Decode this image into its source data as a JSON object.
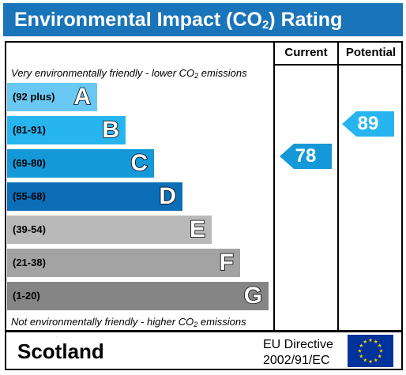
{
  "title": {
    "prefix": "Environmental Impact (CO",
    "sub": "2",
    "suffix": ") Rating"
  },
  "columns": {
    "current": "Current",
    "potential": "Potential"
  },
  "top_note": {
    "prefix": "Very environmentally friendly - lower CO",
    "sub": "2",
    "suffix": " emissions"
  },
  "bottom_note": {
    "prefix": "Not environmentally friendly - higher CO",
    "sub": "2",
    "suffix": " emissions"
  },
  "bands": [
    {
      "range": "(92 plus)",
      "letter": "A",
      "color": "#69c8f2"
    },
    {
      "range": "(81-91)",
      "letter": "B",
      "color": "#27b5f0"
    },
    {
      "range": "(69-80)",
      "letter": "C",
      "color": "#1598d8"
    },
    {
      "range": "(55-68)",
      "letter": "D",
      "color": "#0b6eb7"
    },
    {
      "range": "(39-54)",
      "letter": "E",
      "color": "#b9b9b9"
    },
    {
      "range": "(21-38)",
      "letter": "F",
      "color": "#a3a3a3"
    },
    {
      "range": "(1-20)",
      "letter": "G",
      "color": "#858585"
    }
  ],
  "current": {
    "value": "78",
    "color": "#1598d8"
  },
  "potential": {
    "value": "89",
    "color": "#27b5f0"
  },
  "footer": {
    "region": "Scotland",
    "directive_line1": "EU Directive",
    "directive_line2": "2002/91/EC",
    "flag_icon": "eu-flag-icon"
  }
}
